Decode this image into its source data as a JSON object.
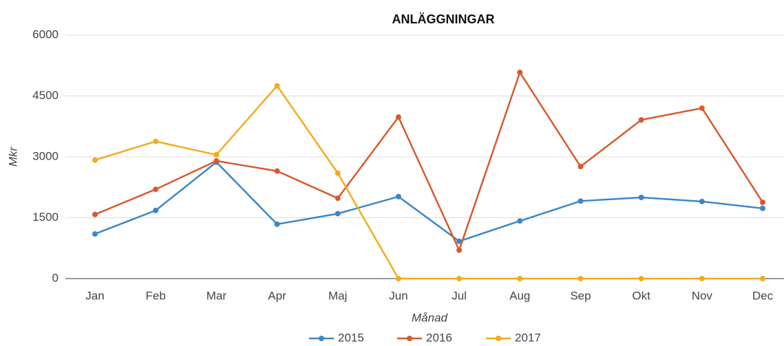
{
  "chart_data": {
    "type": "line",
    "title": "ANLÄGGNINGAR",
    "x_label": "Månad",
    "y_label": "Mkr",
    "categories": [
      "Jan",
      "Feb",
      "Mar",
      "Apr",
      "Maj",
      "Jun",
      "Jul",
      "Aug",
      "Sep",
      "Okt",
      "Nov",
      "Dec"
    ],
    "series": [
      {
        "name": "2015",
        "color": "#3a87c8",
        "values": [
          1100,
          1680,
          2870,
          1340,
          1600,
          2020,
          920,
          1420,
          1910,
          2000,
          1900,
          1730
        ]
      },
      {
        "name": "2016",
        "color": "#d9592c",
        "values": [
          1580,
          2200,
          2900,
          2650,
          1980,
          3980,
          700,
          5080,
          2760,
          3910,
          4200,
          1880
        ]
      },
      {
        "name": "2017",
        "color": "#f2ac1c",
        "values": [
          2920,
          3380,
          3050,
          4750,
          2600,
          0,
          0,
          0,
          0,
          0,
          0,
          0
        ]
      }
    ],
    "ylim": [
      0,
      6000
    ],
    "yticks": [
      0,
      1500,
      3000,
      4500,
      6000
    ],
    "grid": true,
    "legend": "bottom"
  }
}
